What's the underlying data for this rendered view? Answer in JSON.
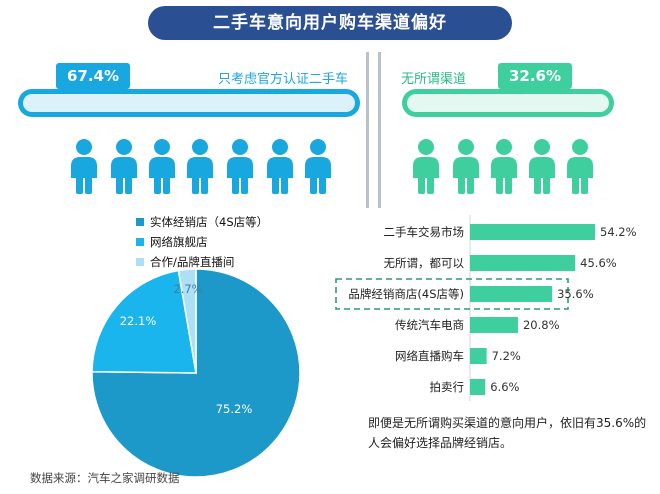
{
  "header": {
    "title": "二手车意向用户购车渠道偏好"
  },
  "banner": {
    "left_pct": "67.4%",
    "left_label": "只考虑官方认证二手车",
    "right_pct": "32.6%",
    "right_label": "无所谓渠道",
    "colors": {
      "left": "#19a7e0",
      "right": "#3fcf9f"
    }
  },
  "chart_data": [
    {
      "type": "pie",
      "labels": [
        "实体经销店（4S店等）",
        "网络旗舰店",
        "合作/品牌直播间"
      ],
      "values": [
        75.2,
        22.1,
        2.7
      ],
      "value_labels": [
        "75.2%",
        "22.1%",
        "2.7%"
      ],
      "colors": [
        "#1c98c9",
        "#19b5ec",
        "#aee0f5"
      ],
      "legend": "top-left"
    },
    {
      "type": "bar",
      "orientation": "horizontal",
      "categories": [
        "二手车交易市场",
        "无所谓，都可以",
        "品牌经销商店(4S店等)",
        "传统汽车电商",
        "网络直播购车",
        "拍卖行"
      ],
      "values": [
        54.2,
        45.6,
        35.6,
        20.8,
        7.2,
        6.6
      ],
      "value_labels": [
        "54.2%",
        "45.6%",
        "35.6%",
        "20.8%",
        "7.2%",
        "6.6%"
      ],
      "highlight_index": 2,
      "color": "#3fcf9f"
    }
  ],
  "note": "即便是无所谓购买渠道的意向用户，依旧有35.6%的人会偏好选择品牌经销店。",
  "source": "数据来源：汽车之家调研数据"
}
